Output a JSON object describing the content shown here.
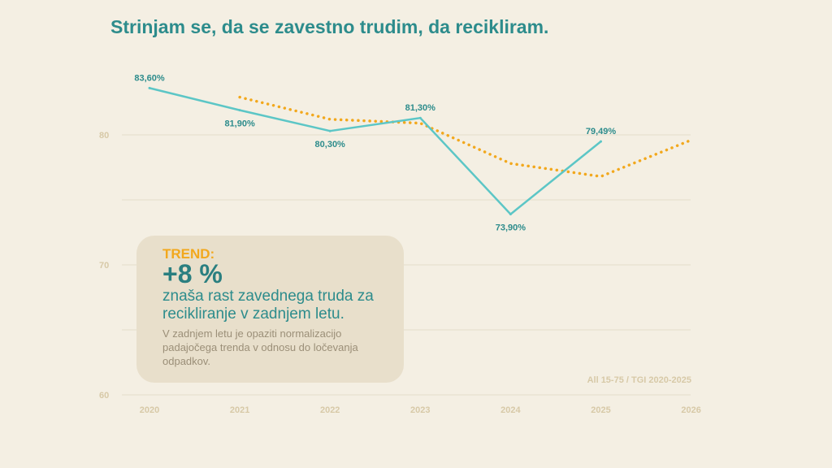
{
  "title": "Strinjam se, da se zavestno trudim, da recikliram.",
  "colors": {
    "actual": "#5cc6c6",
    "trend": "#f2a81d",
    "label": "#2d8c8c",
    "axis": "#d7c9a7",
    "grid": "#e4dccb"
  },
  "chart_data": {
    "type": "line",
    "title": "Strinjam se, da se zavestno trudim, da recikliram.",
    "x": [
      2020,
      2021,
      2022,
      2023,
      2024,
      2025,
      2026
    ],
    "ylim": [
      60,
      84
    ],
    "yticks": [
      60,
      70,
      80
    ],
    "grid": true,
    "series": [
      {
        "name": "actual",
        "style": "solid",
        "x": [
          2020,
          2021,
          2022,
          2023,
          2024,
          2025
        ],
        "values": [
          83.6,
          81.9,
          80.3,
          81.3,
          73.9,
          79.49
        ],
        "labels": [
          "83,60%",
          "81,90%",
          "80,30%",
          "81,30%",
          "73,90%",
          "79,49%"
        ]
      },
      {
        "name": "trend",
        "style": "dotted",
        "x": [
          2021,
          2022,
          2023,
          2024,
          2025,
          2026
        ],
        "values": [
          82.9,
          81.2,
          80.9,
          77.8,
          76.8,
          79.6
        ]
      }
    ],
    "source": "All 15-75 / TGI 2020-2025"
  },
  "trend": {
    "label": "TREND:",
    "value": "+8 %",
    "description": "znaša rast zavednega truda za recikliranje v zadnjem letu.",
    "note": "V zadnjem letu je opaziti normalizacijo padajočega trenda v odnosu do ločevanja odpadkov."
  }
}
